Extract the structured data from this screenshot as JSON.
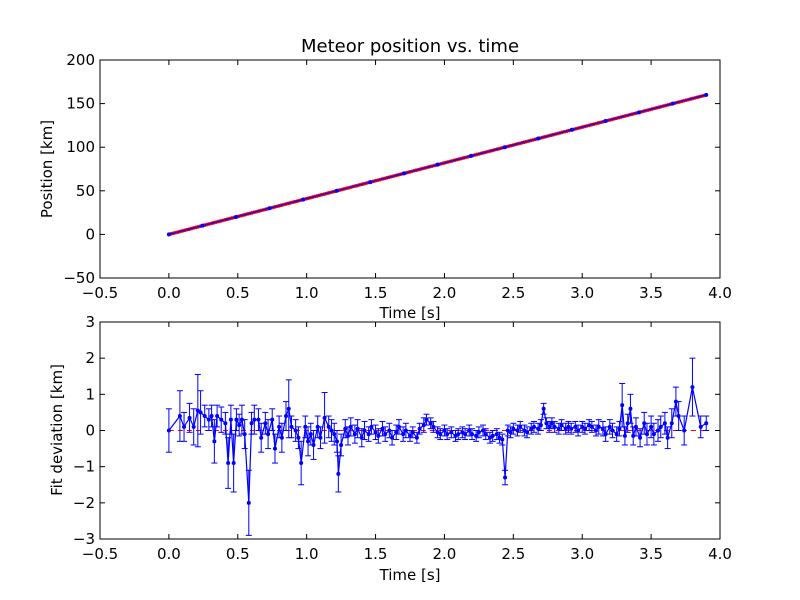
{
  "chart_data": [
    {
      "type": "scatter",
      "title": "Meteor position vs. time",
      "xlabel": "Time [s]",
      "ylabel": "Position [km]",
      "xlim": [
        -0.5,
        4.0
      ],
      "ylim": [
        -50,
        200
      ],
      "xticks": [
        "−0.5",
        "0.0",
        "0.5",
        "1.0",
        "1.5",
        "2.0",
        "2.5",
        "3.0",
        "3.5",
        "4.0"
      ],
      "yticks": [
        "−50",
        "0",
        "50",
        "100",
        "150",
        "200"
      ],
      "grid": false,
      "legend": "none",
      "series": [
        {
          "kind": "points",
          "color": "#ff0000",
          "marker": "dot",
          "t_range": [
            0.0,
            3.9
          ],
          "slope_km_per_s": 41.0,
          "intercept_km": 0.0,
          "n_points": 240,
          "values_sample": [
            [
              0.0,
              0.0
            ],
            [
              0.5,
              20.5
            ],
            [
              1.0,
              41.0
            ],
            [
              1.5,
              61.5
            ],
            [
              2.0,
              82.0
            ],
            [
              2.5,
              102.5
            ],
            [
              3.0,
              123.0
            ],
            [
              3.5,
              143.5
            ],
            [
              3.9,
              160.0
            ]
          ]
        },
        {
          "kind": "line",
          "color": "#0000ff",
          "marker": "dot",
          "values": [
            [
              0.0,
              0.0
            ],
            [
              3.9,
              160.0
            ]
          ]
        }
      ]
    },
    {
      "type": "line",
      "title": "",
      "xlabel": "Time [s]",
      "ylabel": "Fit deviation [km]",
      "xlim": [
        -0.5,
        4.0
      ],
      "ylim": [
        -3,
        3
      ],
      "xticks": [
        "−0.5",
        "0.0",
        "0.5",
        "1.0",
        "1.5",
        "2.0",
        "2.5",
        "3.0",
        "3.5",
        "4.0"
      ],
      "yticks": [
        "−3",
        "−2",
        "−1",
        "0",
        "1",
        "2",
        "3"
      ],
      "grid": false,
      "legend": "none",
      "reference_line": {
        "color": "#ff0000",
        "style": "dashed",
        "y": 0
      },
      "series": [
        {
          "kind": "line-with-errorbars",
          "color": "#0000ff",
          "marker": "dot",
          "points": [
            [
              0.0,
              0.0,
              0.6
            ],
            [
              0.08,
              0.4,
              0.7
            ],
            [
              0.11,
              0.1,
              0.4
            ],
            [
              0.15,
              0.35,
              0.4
            ],
            [
              0.18,
              0.1,
              0.5
            ],
            [
              0.21,
              0.55,
              1.0
            ],
            [
              0.23,
              0.5,
              0.6
            ],
            [
              0.26,
              0.4,
              0.3
            ],
            [
              0.29,
              0.3,
              0.3
            ],
            [
              0.31,
              0.4,
              0.3
            ],
            [
              0.33,
              -0.3,
              0.6
            ],
            [
              0.35,
              0.4,
              0.3
            ],
            [
              0.38,
              0.3,
              0.35
            ],
            [
              0.41,
              0.2,
              0.3
            ],
            [
              0.43,
              -0.9,
              0.7
            ],
            [
              0.45,
              0.3,
              0.4
            ],
            [
              0.47,
              -0.9,
              0.8
            ],
            [
              0.49,
              0.3,
              0.3
            ],
            [
              0.51,
              0.15,
              0.3
            ],
            [
              0.53,
              0.3,
              0.4
            ],
            [
              0.55,
              -0.1,
              0.4
            ],
            [
              0.58,
              -2.0,
              0.9
            ],
            [
              0.6,
              0.2,
              0.3
            ],
            [
              0.62,
              0.3,
              0.4
            ],
            [
              0.65,
              0.3,
              0.3
            ],
            [
              0.67,
              -0.2,
              0.4
            ],
            [
              0.7,
              0.2,
              0.3
            ],
            [
              0.72,
              -0.1,
              0.4
            ],
            [
              0.75,
              0.3,
              0.3
            ],
            [
              0.77,
              -0.5,
              0.4
            ],
            [
              0.8,
              0.1,
              0.3
            ],
            [
              0.82,
              -0.2,
              0.4
            ],
            [
              0.85,
              0.4,
              0.4
            ],
            [
              0.87,
              0.6,
              0.8
            ],
            [
              0.89,
              0.1,
              0.3
            ],
            [
              0.92,
              0.0,
              0.3
            ],
            [
              0.94,
              -0.2,
              0.3
            ],
            [
              0.96,
              -0.9,
              0.6
            ],
            [
              0.99,
              0.1,
              0.3
            ],
            [
              1.01,
              -0.3,
              0.4
            ],
            [
              1.03,
              -0.1,
              0.3
            ],
            [
              1.05,
              -0.4,
              0.4
            ],
            [
              1.08,
              0.1,
              0.3
            ],
            [
              1.1,
              -0.2,
              0.3
            ],
            [
              1.13,
              0.35,
              0.7
            ],
            [
              1.16,
              0.1,
              0.3
            ],
            [
              1.18,
              0.0,
              0.3
            ],
            [
              1.2,
              -0.1,
              0.3
            ],
            [
              1.22,
              -0.3,
              0.3
            ],
            [
              1.23,
              -1.2,
              0.5
            ],
            [
              1.25,
              -0.4,
              0.3
            ],
            [
              1.28,
              0.05,
              0.25
            ],
            [
              1.3,
              -0.15,
              0.25
            ],
            [
              1.32,
              0.1,
              0.25
            ],
            [
              1.35,
              -0.1,
              0.25
            ],
            [
              1.37,
              0.05,
              0.25
            ],
            [
              1.4,
              -0.2,
              0.25
            ],
            [
              1.42,
              0.0,
              0.25
            ],
            [
              1.45,
              -0.1,
              0.2
            ],
            [
              1.47,
              0.1,
              0.2
            ],
            [
              1.5,
              -0.05,
              0.2
            ],
            [
              1.52,
              -0.15,
              0.2
            ],
            [
              1.55,
              0.05,
              0.2
            ],
            [
              1.57,
              -0.1,
              0.2
            ],
            [
              1.6,
              0.0,
              0.2
            ],
            [
              1.62,
              -0.2,
              0.2
            ],
            [
              1.65,
              -0.05,
              0.2
            ],
            [
              1.67,
              0.1,
              0.2
            ],
            [
              1.7,
              -0.1,
              0.2
            ],
            [
              1.72,
              0.0,
              0.2
            ],
            [
              1.75,
              -0.15,
              0.15
            ],
            [
              1.77,
              -0.05,
              0.15
            ],
            [
              1.8,
              -0.2,
              0.15
            ],
            [
              1.82,
              0.05,
              0.15
            ],
            [
              1.85,
              0.15,
              0.2
            ],
            [
              1.87,
              0.3,
              0.15
            ],
            [
              1.9,
              0.2,
              0.15
            ],
            [
              1.92,
              0.1,
              0.15
            ],
            [
              1.95,
              -0.05,
              0.15
            ],
            [
              1.97,
              -0.1,
              0.15
            ],
            [
              2.0,
              0.0,
              0.15
            ],
            [
              2.02,
              -0.1,
              0.15
            ],
            [
              2.05,
              -0.05,
              0.15
            ],
            [
              2.08,
              -0.15,
              0.15
            ],
            [
              2.1,
              -0.1,
              0.15
            ],
            [
              2.13,
              -0.05,
              0.15
            ],
            [
              2.15,
              -0.1,
              0.15
            ],
            [
              2.18,
              0.0,
              0.15
            ],
            [
              2.2,
              -0.1,
              0.15
            ],
            [
              2.23,
              -0.15,
              0.15
            ],
            [
              2.25,
              -0.05,
              0.15
            ],
            [
              2.28,
              0.0,
              0.15
            ],
            [
              2.3,
              -0.1,
              0.15
            ],
            [
              2.33,
              -0.2,
              0.15
            ],
            [
              2.35,
              -0.15,
              0.15
            ],
            [
              2.38,
              -0.1,
              0.15
            ],
            [
              2.4,
              -0.2,
              0.15
            ],
            [
              2.42,
              -0.25,
              0.15
            ],
            [
              2.44,
              -1.3,
              0.2
            ],
            [
              2.46,
              0.0,
              0.15
            ],
            [
              2.48,
              -0.05,
              0.15
            ],
            [
              2.5,
              0.05,
              0.15
            ],
            [
              2.53,
              0.0,
              0.15
            ],
            [
              2.55,
              0.1,
              0.15
            ],
            [
              2.58,
              0.0,
              0.15
            ],
            [
              2.6,
              -0.05,
              0.15
            ],
            [
              2.63,
              0.05,
              0.15
            ],
            [
              2.65,
              0.1,
              0.15
            ],
            [
              2.68,
              0.05,
              0.15
            ],
            [
              2.7,
              0.15,
              0.15
            ],
            [
              2.72,
              0.6,
              0.15
            ],
            [
              2.74,
              0.2,
              0.15
            ],
            [
              2.76,
              0.1,
              0.15
            ],
            [
              2.78,
              0.2,
              0.15
            ],
            [
              2.8,
              0.1,
              0.15
            ],
            [
              2.83,
              0.05,
              0.15
            ],
            [
              2.85,
              0.15,
              0.15
            ],
            [
              2.88,
              0.05,
              0.15
            ],
            [
              2.9,
              0.1,
              0.15
            ],
            [
              2.92,
              0.05,
              0.15
            ],
            [
              2.95,
              0.1,
              0.15
            ],
            [
              2.97,
              0.0,
              0.15
            ],
            [
              3.0,
              0.1,
              0.15
            ],
            [
              3.02,
              0.05,
              0.15
            ],
            [
              3.05,
              0.15,
              0.15
            ],
            [
              3.07,
              0.1,
              0.15
            ],
            [
              3.1,
              0.0,
              0.15
            ],
            [
              3.12,
              0.1,
              0.2
            ],
            [
              3.15,
              0.05,
              0.2
            ],
            [
              3.17,
              -0.1,
              0.2
            ],
            [
              3.2,
              0.1,
              0.2
            ],
            [
              3.22,
              0.0,
              0.2
            ],
            [
              3.25,
              -0.1,
              0.2
            ],
            [
              3.27,
              0.05,
              0.2
            ],
            [
              3.29,
              0.7,
              0.6
            ],
            [
              3.31,
              -0.15,
              0.25
            ],
            [
              3.33,
              0.2,
              0.25
            ],
            [
              3.35,
              0.6,
              0.4
            ],
            [
              3.37,
              -0.15,
              0.25
            ],
            [
              3.39,
              0.1,
              0.25
            ],
            [
              3.42,
              -0.2,
              0.25
            ],
            [
              3.45,
              0.2,
              0.3
            ],
            [
              3.47,
              -0.1,
              0.3
            ],
            [
              3.5,
              0.1,
              0.3
            ],
            [
              3.52,
              -0.1,
              0.3
            ],
            [
              3.55,
              0.0,
              0.3
            ],
            [
              3.57,
              0.1,
              0.3
            ],
            [
              3.6,
              0.2,
              0.3
            ],
            [
              3.62,
              -0.2,
              0.3
            ],
            [
              3.65,
              0.2,
              0.4
            ],
            [
              3.68,
              0.8,
              0.4
            ],
            [
              3.7,
              0.4,
              0.4
            ],
            [
              3.74,
              0.0,
              0.4
            ],
            [
              3.8,
              1.2,
              0.8
            ],
            [
              3.86,
              0.1,
              0.3
            ],
            [
              3.9,
              0.2,
              0.2
            ]
          ]
        }
      ]
    }
  ]
}
